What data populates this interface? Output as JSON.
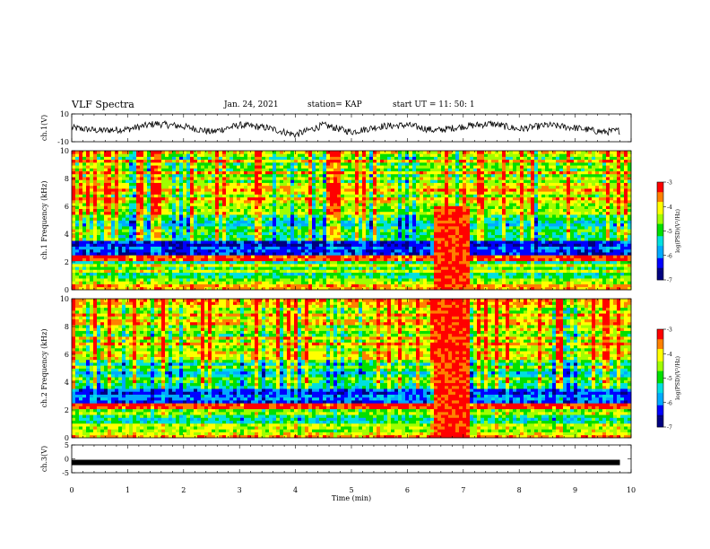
{
  "header": {
    "title": "VLF Spectra",
    "date": "Jan. 24, 2021",
    "station": "station= KAP",
    "start": "start  UT =   11: 50: 1"
  },
  "colors": {
    "palette": [
      "#ffffff",
      "#000080",
      "#0000ff",
      "#00aaff",
      "#00e0e0",
      "#00e000",
      "#a0ff00",
      "#ffff00",
      "#ff8000",
      "#ff0000"
    ]
  },
  "chart_data": [
    {
      "type": "line",
      "panel": "ch1-waveform",
      "ylabel": "ch.1(V)",
      "ylim": [
        -10,
        10
      ],
      "yticks": [
        "10",
        "-10"
      ],
      "x": [
        0,
        0.5,
        1,
        1.5,
        2,
        2.5,
        3,
        3.5,
        4,
        4.5,
        5,
        5.5,
        6,
        6.5,
        7,
        7.5,
        8,
        8.5,
        9,
        9.5,
        9.8
      ],
      "values": [
        0,
        -2,
        -1,
        3,
        1,
        -3,
        2,
        0,
        -5,
        2,
        -3,
        1,
        2,
        -2,
        1,
        3,
        -1,
        2,
        0,
        -3,
        -2
      ]
    },
    {
      "type": "heatmap",
      "panel": "ch1-spectrogram",
      "ylabel": "ch.1 Frequency (kHz)",
      "ylim": [
        0,
        10
      ],
      "yticks": [
        "0",
        "2",
        "4",
        "6",
        "8",
        "10"
      ],
      "colorbar_label": "log(PSD)(V²/Hz)",
      "colorbar_ticks": [
        "-3",
        "-4",
        "-5",
        "-6",
        "-7"
      ],
      "colorbar_range": [
        -7,
        -3
      ],
      "notable_bursts": [
        {
          "t_start": 6.5,
          "t_end": 7.1,
          "f_max": 6
        }
      ]
    },
    {
      "type": "heatmap",
      "panel": "ch2-spectrogram",
      "ylabel": "ch.2 Frequency (kHz)",
      "ylim": [
        0,
        10
      ],
      "yticks": [
        "0",
        "2",
        "4",
        "6",
        "8",
        "10"
      ],
      "colorbar_label": "log(PSD)(V²/Hz)",
      "colorbar_ticks": [
        "-3",
        "-4",
        "-5",
        "-6",
        "-7"
      ],
      "colorbar_range": [
        -7,
        -3
      ],
      "notable_bursts": [
        {
          "t_start": 6.5,
          "t_end": 7.1,
          "f_max": 10
        }
      ]
    },
    {
      "type": "line",
      "panel": "ch3-waveform",
      "ylabel": "ch.3(V)",
      "ylim": [
        -5,
        5
      ],
      "yticks": [
        "5",
        "0",
        "-5"
      ],
      "x": [
        0,
        9.8
      ],
      "values": [
        -1.3,
        -1.3
      ]
    }
  ],
  "xaxis": {
    "label": "Time  (min)",
    "range": [
      0,
      10
    ],
    "ticks": [
      "0",
      "1",
      "2",
      "3",
      "4",
      "5",
      "6",
      "7",
      "8",
      "9",
      "10"
    ]
  }
}
